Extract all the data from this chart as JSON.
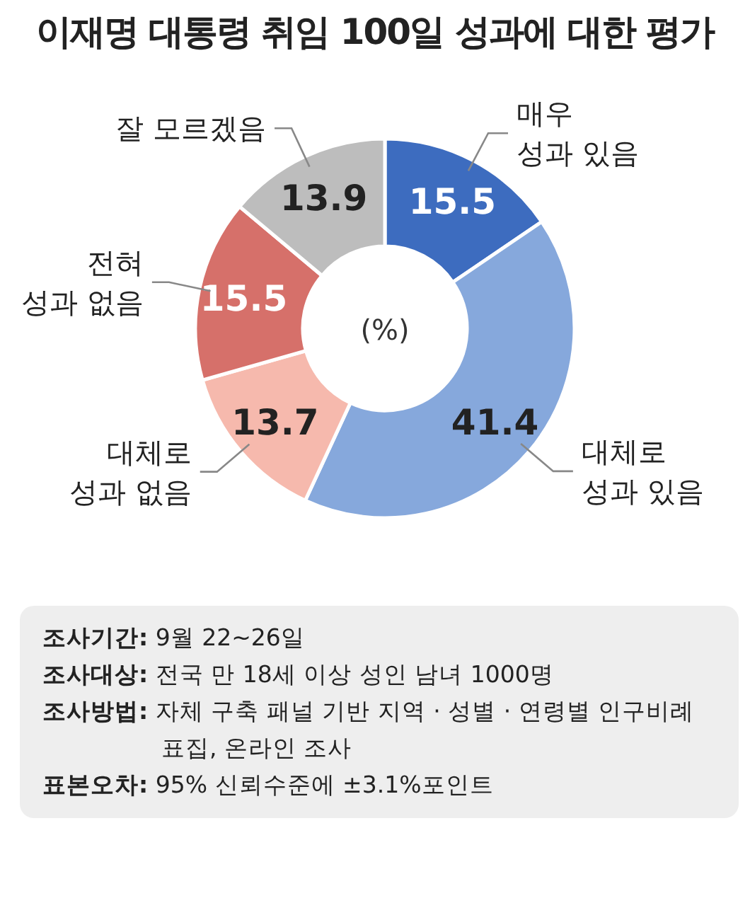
{
  "chart_data": {
    "type": "donut",
    "title": "이재명 대통령 취임 100일 성과에 대한 평가",
    "categories": [
      "매우 성과 있음",
      "대체로 성과 있음",
      "대체로 성과 없음",
      "전혀 성과 없음",
      "잘 모르겠음"
    ],
    "values": [
      15.5,
      41.4,
      13.7,
      15.5,
      13.9
    ],
    "colors": [
      "#3d6cbf",
      "#86a8dc",
      "#f6b9ad",
      "#d6706a",
      "#bdbdbd"
    ],
    "data_labels": true,
    "annotations": [
      "(%)",
      "**조사기간:** 9월 22~26일",
      "**조사대상:** 전국 만 18세 이상 성인 남녀 1000명",
      "**조사방법:** 자체 구축 패널 기반 지역 · 성별 · 연령별 인구비례 표집, 온라인 조사",
      "**표본오차:** 95% 신뢰수준에 ±3.1%포인트"
    ]
  }
}
